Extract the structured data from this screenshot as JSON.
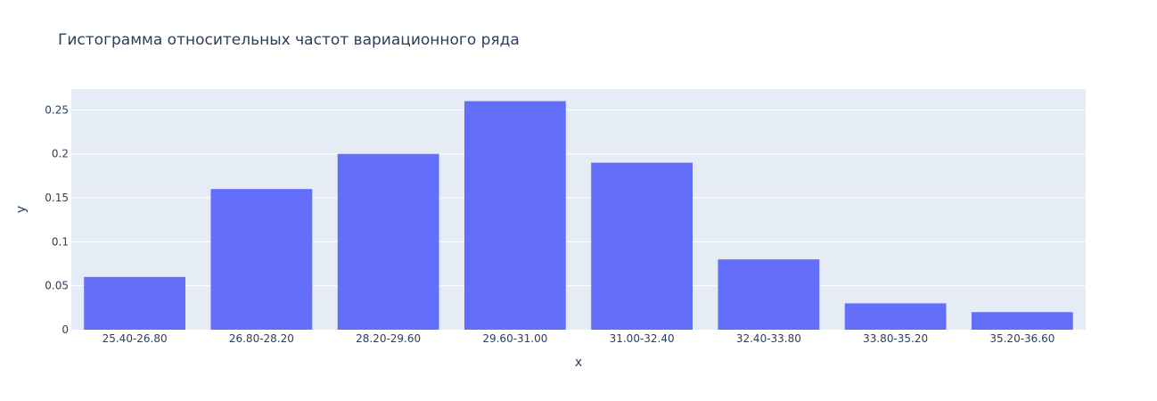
{
  "chart_data": {
    "type": "bar",
    "title": "Гистограмма относительных частот вариационного ряда",
    "xlabel": "x",
    "ylabel": "y",
    "categories": [
      "25.40-26.80",
      "26.80-28.20",
      "28.20-29.60",
      "29.60-31.00",
      "31.00-32.40",
      "32.40-33.80",
      "33.80-35.20",
      "35.20-36.60"
    ],
    "values": [
      0.06,
      0.16,
      0.2,
      0.26,
      0.19,
      0.08,
      0.03,
      0.02
    ],
    "yticks": [
      0,
      0.05,
      0.1,
      0.15,
      0.2,
      0.25
    ],
    "ytick_labels": [
      "0",
      "0.05",
      "0.1",
      "0.15",
      "0.2",
      "0.25"
    ],
    "ylim": [
      0,
      0.2737
    ],
    "grid": true,
    "colors": {
      "bar": "#636efa",
      "plot_background": "#e5ecf6",
      "gridline": "#ffffff",
      "text": "#2a3f5f"
    }
  }
}
